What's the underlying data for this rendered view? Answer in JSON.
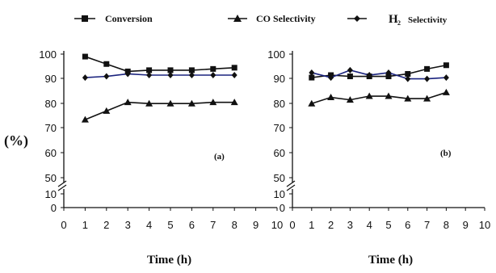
{
  "legend": [
    {
      "label": "Conversion",
      "marker": "square"
    },
    {
      "label": "CO Selectivity",
      "marker": "triangle"
    },
    {
      "label": "H",
      "sub": "2",
      "after": "Selectivity",
      "marker": "diamond"
    }
  ],
  "colors": {
    "conversion": "#111111",
    "co": "#111111",
    "h2": "#1a237e",
    "axis": "#111111"
  },
  "y_axis_label": "(%)",
  "chart_data": [
    {
      "type": "line",
      "panel_label": "(a)",
      "xlabel": "Time (h)",
      "xlim": [
        0,
        10
      ],
      "xticks": [
        "0",
        "1",
        "2",
        "3",
        "4",
        "5",
        "6",
        "7",
        "8",
        "9",
        "10"
      ],
      "yticks": [
        "0",
        "10",
        "50",
        "60",
        "70",
        "80",
        "90",
        "100"
      ],
      "y_axis_break": true,
      "series": [
        {
          "name": "Conversion",
          "marker": "square",
          "x": [
            1,
            2,
            3,
            4,
            5,
            6,
            7,
            8
          ],
          "values": [
            99,
            96,
            93,
            93.5,
            93.5,
            93.5,
            94,
            94.5
          ]
        },
        {
          "name": "CO Selectivity",
          "marker": "triangle",
          "x": [
            1,
            2,
            3,
            4,
            5,
            6,
            7,
            8
          ],
          "values": [
            73.5,
            77,
            80.5,
            80,
            80,
            80,
            80.5,
            80.5
          ]
        },
        {
          "name": "H2 Selectivity",
          "marker": "diamond",
          "x": [
            1,
            2,
            3,
            4,
            5,
            6,
            7,
            8
          ],
          "values": [
            90.5,
            91,
            92,
            91.5,
            91.5,
            91.5,
            91.5,
            91.5
          ]
        }
      ]
    },
    {
      "type": "line",
      "panel_label": "(b)",
      "xlabel": "Time (h)",
      "xlim": [
        0,
        10
      ],
      "xticks": [
        "0",
        "1",
        "2",
        "3",
        "4",
        "5",
        "6",
        "7",
        "8",
        "9",
        "10"
      ],
      "yticks": [
        "0",
        "10",
        "50",
        "60",
        "70",
        "80",
        "90",
        "100"
      ],
      "y_axis_break": true,
      "series": [
        {
          "name": "Conversion",
          "marker": "square",
          "x": [
            1,
            2,
            3,
            4,
            5,
            6,
            7,
            8
          ],
          "values": [
            90.5,
            91.5,
            91,
            91,
            91,
            92,
            94,
            95.5
          ]
        },
        {
          "name": "CO Selectivity",
          "marker": "triangle",
          "x": [
            1,
            2,
            3,
            4,
            5,
            6,
            7,
            8
          ],
          "values": [
            80,
            82.5,
            81.5,
            83,
            83,
            82,
            82,
            84.5
          ]
        },
        {
          "name": "H2 Selectivity",
          "marker": "diamond",
          "x": [
            1,
            2,
            3,
            4,
            5,
            6,
            7,
            8
          ],
          "values": [
            92.5,
            90.5,
            93.5,
            91.5,
            92.5,
            90,
            90,
            90.5
          ]
        }
      ]
    }
  ]
}
